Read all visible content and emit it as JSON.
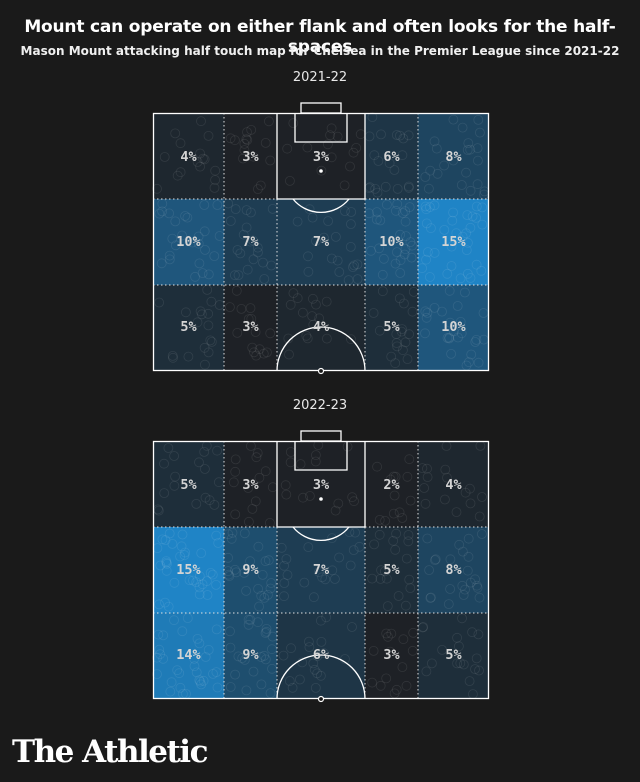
{
  "title": "Mount can operate on either flank and often looks for the half-spaces",
  "subtitle": "Mason Mount attacking half touch map for Chelsea in the Premier League since 2021-22",
  "brand": "The Athletic",
  "colors": {
    "background": "#1a1a1a",
    "low": "#1e2126",
    "high": "#1f84c6",
    "lines": "#ffffff"
  },
  "chart_data": [
    {
      "type": "heatmap",
      "season": "2021-22",
      "rows": [
        [
          "4%",
          "3%",
          "3%",
          "6%",
          "8%"
        ],
        [
          "10%",
          "7%",
          "7%",
          "10%",
          "15%"
        ],
        [
          "5%",
          "3%",
          "4%",
          "5%",
          "10%"
        ]
      ],
      "values": [
        [
          4,
          3,
          3,
          6,
          8
        ],
        [
          10,
          7,
          7,
          10,
          15
        ],
        [
          5,
          3,
          4,
          5,
          10
        ]
      ]
    },
    {
      "type": "heatmap",
      "season": "2022-23",
      "rows": [
        [
          "5%",
          "3%",
          "3%",
          "2%",
          "4%"
        ],
        [
          "15%",
          "9%",
          "7%",
          "5%",
          "8%"
        ],
        [
          "14%",
          "9%",
          "6%",
          "3%",
          "5%"
        ]
      ],
      "values": [
        [
          5,
          3,
          3,
          2,
          4
        ],
        [
          15,
          9,
          7,
          5,
          8
        ],
        [
          14,
          9,
          6,
          3,
          5
        ]
      ]
    }
  ]
}
